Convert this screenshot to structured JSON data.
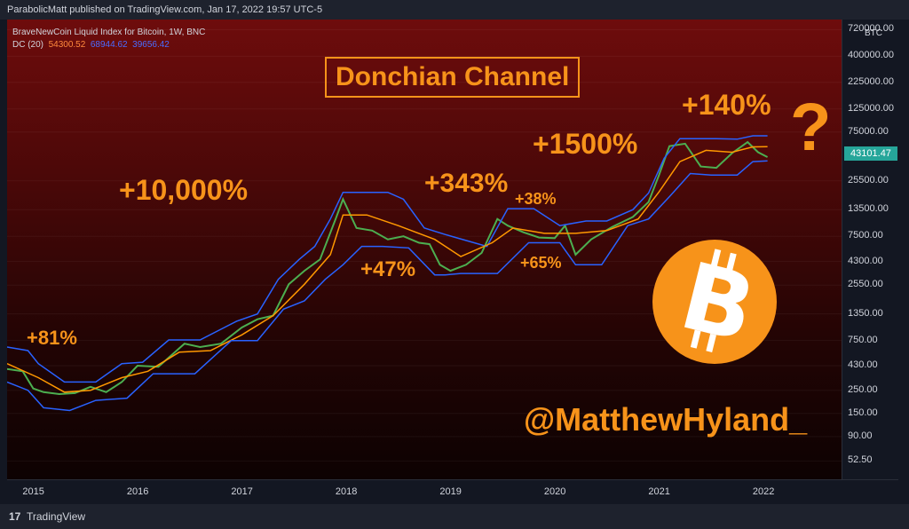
{
  "header": {
    "publisher": "ParabolicMatt published on TradingView.com, Jan 17, 2022 19:57 UTC-5"
  },
  "legend": {
    "symbol": "BraveNewCoin Liquid Index for Bitcoin, 1W, BNC",
    "dc_label": "DC (20)",
    "dc_mid": "54300.52",
    "dc_upper": "68944.62",
    "dc_lower": "39656.42"
  },
  "chart_data": {
    "type": "line",
    "title": "Donchian Channel",
    "y_scale": "log",
    "ylim": [
      35,
      900000
    ],
    "x_range": [
      2014.75,
      2022.75
    ],
    "x_ticks": [
      "2015",
      "2016",
      "2017",
      "2018",
      "2019",
      "2020",
      "2021",
      "2022"
    ],
    "y_ticks": [
      "720000.00",
      "400000.00",
      "225000.00",
      "125000.00",
      "75000.00",
      "25500.00",
      "13500.00",
      "7500.00",
      "4300.00",
      "2550.00",
      "1350.00",
      "750.00",
      "430.00",
      "250.00",
      "150.00",
      "90.00",
      "52.50"
    ],
    "y_unit": "BTC",
    "last_price": "43101.47",
    "series": [
      {
        "color": "#4caf50",
        "x": [
          2014.75,
          2014.9,
          2015.0,
          2015.1,
          2015.25,
          2015.4,
          2015.55,
          2015.7,
          2015.85,
          2016.0,
          2016.2,
          2016.45,
          2016.6,
          2016.8,
          2017.0,
          2017.15,
          2017.3,
          2017.45,
          2017.6,
          2017.75,
          2017.9,
          2017.97,
          2018.1,
          2018.25,
          2018.4,
          2018.55,
          2018.7,
          2018.8,
          2018.9,
          2019.0,
          2019.15,
          2019.3,
          2019.45,
          2019.55,
          2019.7,
          2019.85,
          2020.0,
          2020.1,
          2020.2,
          2020.35,
          2020.55,
          2020.75,
          2020.9,
          2021.0,
          2021.1,
          2021.25,
          2021.4,
          2021.55,
          2021.7,
          2021.85,
          2021.95,
          2022.04
        ],
        "y": [
          400,
          380,
          260,
          240,
          230,
          235,
          270,
          240,
          300,
          430,
          420,
          700,
          650,
          700,
          1000,
          1200,
          1300,
          2600,
          3500,
          4500,
          11000,
          17000,
          9000,
          8500,
          7000,
          7500,
          6500,
          6300,
          4000,
          3500,
          4000,
          5200,
          11000,
          9500,
          8200,
          7300,
          7200,
          9500,
          5000,
          7000,
          9200,
          11500,
          16000,
          29000,
          55000,
          58000,
          35000,
          34000,
          47000,
          60000,
          48000,
          43101
        ]
      },
      {
        "color": "#2962ff",
        "x": [
          2014.75,
          2014.95,
          2015.05,
          2015.3,
          2015.6,
          2015.85,
          2016.05,
          2016.3,
          2016.6,
          2016.95,
          2017.15,
          2017.35,
          2017.55,
          2017.7,
          2017.85,
          2017.97,
          2018.4,
          2018.55,
          2018.75,
          2018.95,
          2019.35,
          2019.55,
          2019.8,
          2020.05,
          2020.3,
          2020.5,
          2020.75,
          2020.9,
          2021.05,
          2021.2,
          2021.55,
          2021.75,
          2021.9,
          2022.04
        ],
        "y": [
          650,
          600,
          450,
          300,
          300,
          450,
          465,
          760,
          760,
          1150,
          1350,
          2900,
          4500,
          6000,
          11000,
          19800,
          19800,
          17000,
          9000,
          7800,
          6000,
          13800,
          13800,
          9500,
          10500,
          10500,
          13500,
          19500,
          42000,
          64800,
          64800,
          64000,
          69000,
          69000
        ]
      },
      {
        "color": "#ff9800",
        "x": [
          2014.75,
          2015.05,
          2015.3,
          2015.55,
          2015.85,
          2016.1,
          2016.4,
          2016.7,
          2017.0,
          2017.3,
          2017.6,
          2017.85,
          2017.97,
          2018.2,
          2018.5,
          2018.85,
          2019.1,
          2019.4,
          2019.6,
          2019.9,
          2020.2,
          2020.5,
          2020.8,
          2021.0,
          2021.2,
          2021.45,
          2021.7,
          2021.9,
          2022.04
        ],
        "y": [
          450,
          330,
          240,
          250,
          330,
          380,
          580,
          600,
          850,
          1300,
          2600,
          5000,
          12000,
          12000,
          9500,
          7000,
          4800,
          6500,
          9000,
          8000,
          8000,
          8500,
          11000,
          20000,
          39000,
          50000,
          48000,
          54000,
          54300
        ]
      },
      {
        "color": "#2962ff",
        "x": [
          2014.75,
          2014.95,
          2015.1,
          2015.35,
          2015.6,
          2015.9,
          2016.15,
          2016.55,
          2016.9,
          2017.15,
          2017.4,
          2017.6,
          2017.8,
          2017.97,
          2018.15,
          2018.35,
          2018.6,
          2018.85,
          2018.95,
          2019.1,
          2019.45,
          2019.75,
          2020.05,
          2020.2,
          2020.45,
          2020.7,
          2020.9,
          2021.1,
          2021.3,
          2021.5,
          2021.75,
          2021.9,
          2022.04
        ],
        "y": [
          300,
          250,
          170,
          160,
          200,
          210,
          360,
          360,
          750,
          750,
          1500,
          1800,
          2900,
          4000,
          6000,
          6000,
          5800,
          3200,
          3200,
          3300,
          3300,
          6500,
          6500,
          4000,
          4000,
          9500,
          11000,
          18000,
          30000,
          29000,
          29000,
          39000,
          39600
        ]
      }
    ],
    "annotations": [
      "+81%",
      "+10,000%",
      "+47%",
      "+343%",
      "+38%",
      "+65%",
      "+1500%",
      "+140%",
      "?"
    ]
  },
  "overlay": {
    "handle": "@MatthewHyland_"
  },
  "footer": {
    "brand": "TradingView"
  },
  "colors": {
    "accent": "#f7931a",
    "upper_band": "#2962ff",
    "mid_band": "#ff9800",
    "candle_up": "#4caf50",
    "price_label": "#26a69a"
  }
}
